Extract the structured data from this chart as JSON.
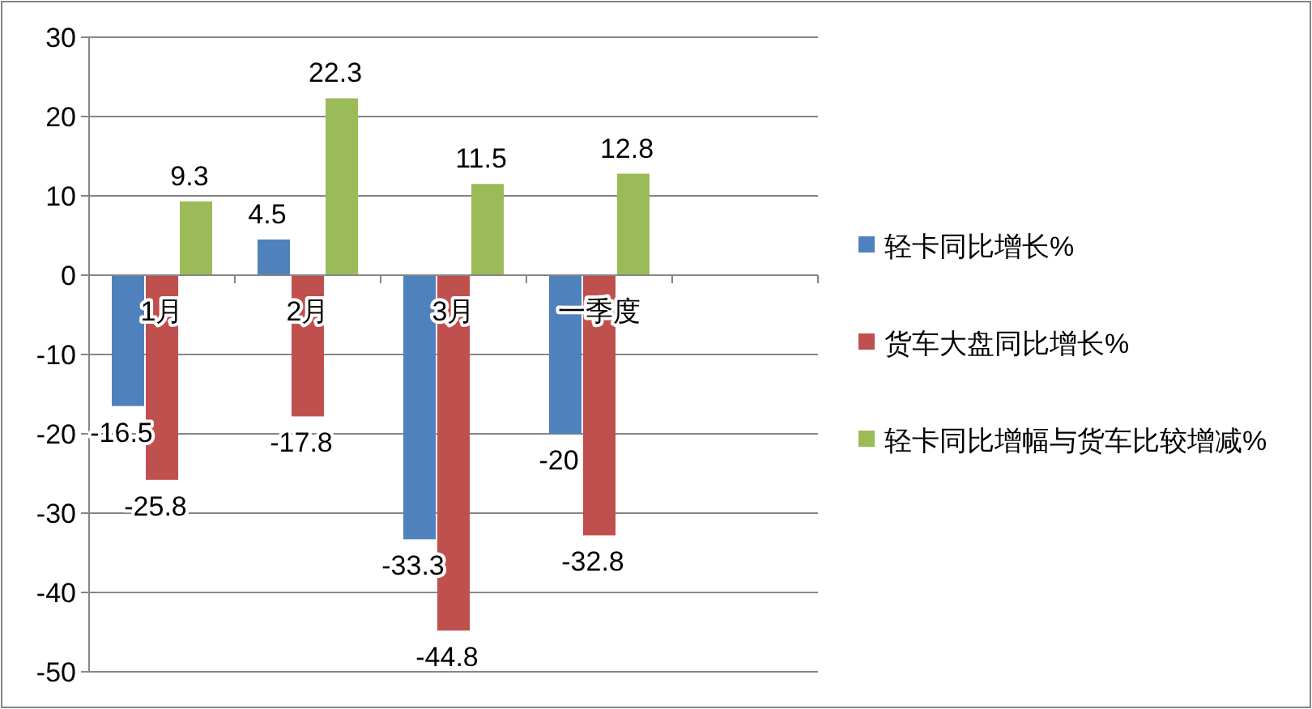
{
  "chart_data": {
    "type": "bar",
    "categories": [
      "1月",
      "2月",
      "3月",
      "一季度",
      null
    ],
    "series": [
      {
        "name": "轻卡同比增长%",
        "color": "#4f81bd",
        "values": [
          -16.5,
          4.5,
          -33.3,
          -20,
          null
        ]
      },
      {
        "name": "货车大盘同比增长%",
        "color": "#c0504d",
        "values": [
          -25.8,
          -17.8,
          -44.8,
          -32.8,
          null
        ]
      },
      {
        "name": "轻卡同比增幅与货车比较增减%",
        "color": "#9bbb59",
        "values": [
          9.3,
          22.3,
          11.5,
          12.8,
          null
        ]
      }
    ],
    "ylim": [
      -50,
      30
    ],
    "yticks": [
      -50,
      -40,
      -30,
      -20,
      -10,
      0,
      10,
      20,
      30
    ],
    "grid": "y",
    "legend": "right",
    "data_labels": true
  }
}
